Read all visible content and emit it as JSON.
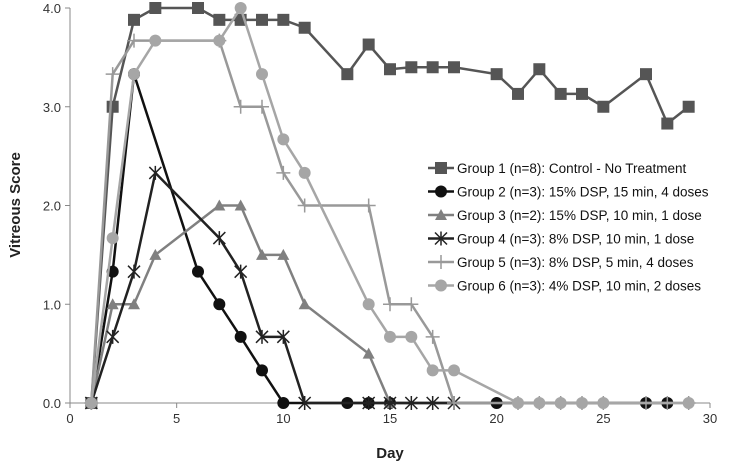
{
  "chart_data": {
    "type": "line",
    "title": "",
    "xlabel": "Day",
    "ylabel": "Vitreous Score",
    "xlim": [
      0,
      30
    ],
    "ylim": [
      0,
      4
    ],
    "xticks": [
      "0",
      "5",
      "10",
      "15",
      "20",
      "25",
      "30"
    ],
    "yticks": [
      "0.0",
      "1.0",
      "2.0",
      "3.0",
      "4.0"
    ],
    "grid": false,
    "legend_position": "right",
    "series": [
      {
        "name": "Group 1 (n=8): Control - No Treatment",
        "color": "#555555",
        "marker": "square",
        "x": [
          1,
          2,
          3,
          4,
          6,
          7,
          8,
          9,
          10,
          11,
          13,
          14,
          15,
          16,
          17,
          18,
          20,
          21,
          22,
          23,
          24,
          25,
          27,
          28,
          29
        ],
        "y": [
          0,
          3.0,
          3.88,
          4.0,
          4.0,
          3.88,
          3.88,
          3.88,
          3.88,
          3.8,
          3.33,
          3.63,
          3.38,
          3.4,
          3.4,
          3.4,
          3.33,
          3.13,
          3.38,
          3.13,
          3.13,
          3.0,
          3.33,
          2.83,
          3.0
        ]
      },
      {
        "name": "Group 2 (n=3): 15% DSP, 15 min, 4 doses",
        "color": "#111111",
        "marker": "circle",
        "x": [
          1,
          2,
          3,
          6,
          7,
          8,
          9,
          10,
          13,
          14,
          15,
          20,
          27,
          28
        ],
        "y": [
          0,
          1.33,
          3.33,
          1.33,
          1.0,
          0.67,
          0.33,
          0,
          0,
          0,
          0,
          0,
          0,
          0
        ]
      },
      {
        "name": "Group 3 (n=2): 15% DSP, 10 min, 1 dose",
        "color": "#808080",
        "marker": "triangle",
        "x": [
          1,
          2,
          3,
          4,
          7,
          8,
          9,
          10,
          11,
          14,
          15
        ],
        "y": [
          0,
          1.0,
          1.0,
          1.5,
          2.0,
          2.0,
          1.5,
          1.5,
          1.0,
          0.5,
          0
        ]
      },
      {
        "name": "Group 4 (n=3): 8% DSP, 10 min, 1 dose",
        "color": "#222222",
        "marker": "star",
        "x": [
          1,
          2,
          3,
          4,
          7,
          8,
          9,
          10,
          11,
          14,
          15,
          16,
          17,
          18
        ],
        "y": [
          0,
          0.67,
          1.33,
          2.33,
          1.67,
          1.33,
          0.67,
          0.67,
          0,
          0,
          0,
          0,
          0,
          0
        ]
      },
      {
        "name": "Group 5 (n=3): 8% DSP, 5 min, 4 doses",
        "color": "#999999",
        "marker": "plus",
        "x": [
          1,
          2,
          3,
          7,
          8,
          9,
          10,
          11,
          14,
          15,
          16,
          17,
          18,
          21,
          22,
          23,
          24,
          25,
          27,
          28,
          29
        ],
        "y": [
          0,
          3.33,
          3.67,
          3.67,
          3.0,
          3.0,
          2.33,
          2.0,
          2.0,
          1.0,
          1.0,
          0.67,
          0,
          0,
          0,
          0,
          0,
          0,
          0,
          0,
          0
        ]
      },
      {
        "name": "Group 6 (n=3): 4% DSP, 10 min, 2 doses",
        "color": "#a6a6a6",
        "marker": "circle",
        "x": [
          1,
          2,
          3,
          4,
          7,
          8,
          9,
          10,
          11,
          14,
          15,
          16,
          17,
          18,
          21,
          22,
          23,
          24,
          25,
          29
        ],
        "y": [
          0,
          1.67,
          3.33,
          3.67,
          3.67,
          4.0,
          3.33,
          2.67,
          2.33,
          1.0,
          0.67,
          0.67,
          0.33,
          0.33,
          0,
          0,
          0,
          0,
          0,
          0
        ]
      }
    ]
  }
}
